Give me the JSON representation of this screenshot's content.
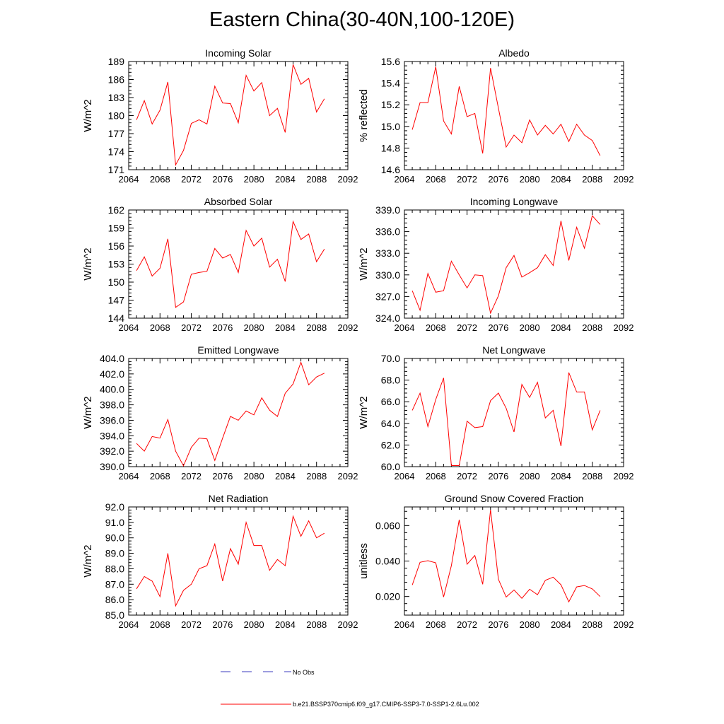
{
  "title": "Eastern China(30-40N,100-120E)",
  "legend": {
    "entries": [
      {
        "label": "No Obs",
        "style": "dashed",
        "color": "#3b3bbf"
      },
      {
        "label": "b.e21.BSSP370cmip6.f09_g17.CMIP6-SSP3-7.0-SSP1-2.6Lu.002",
        "style": "solid",
        "color": "#ff0000"
      }
    ]
  },
  "chart_data": [
    {
      "type": "line",
      "title": "Incoming Solar",
      "ylabel": "W/m^2",
      "xlim": [
        2064,
        2092
      ],
      "ylim": [
        171,
        189
      ],
      "xticks": [
        "2064",
        "2068",
        "2072",
        "2076",
        "2080",
        "2084",
        "2088",
        "2092"
      ],
      "yticks": [
        "171",
        "174",
        "177",
        "180",
        "183",
        "186",
        "189"
      ],
      "color": "#ff0000",
      "x": [
        2065,
        2066,
        2067,
        2068,
        2069,
        2070,
        2071,
        2072,
        2073,
        2074,
        2075,
        2076,
        2077,
        2078,
        2079,
        2080,
        2081,
        2082,
        2083,
        2084,
        2085,
        2086,
        2087,
        2088,
        2089
      ],
      "y": [
        179.3,
        182.5,
        178.6,
        180.9,
        185.6,
        171.8,
        174.2,
        178.7,
        179.3,
        178.6,
        184.9,
        182.1,
        182.0,
        178.8,
        186.7,
        184.1,
        185.5,
        180.0,
        181.2,
        177.2,
        188.5,
        185.2,
        186.2,
        180.6,
        182.8
      ]
    },
    {
      "type": "line",
      "title": "Albedo",
      "ylabel": "% reflected",
      "xlim": [
        2064,
        2092
      ],
      "ylim": [
        14.6,
        15.6
      ],
      "xticks": [
        "2064",
        "2068",
        "2072",
        "2076",
        "2080",
        "2084",
        "2088",
        "2092"
      ],
      "yticks": [
        "14.6",
        "14.8",
        "15.0",
        "15.2",
        "15.4",
        "15.6"
      ],
      "color": "#ff0000",
      "x": [
        2065,
        2066,
        2067,
        2068,
        2069,
        2070,
        2071,
        2072,
        2073,
        2074,
        2075,
        2076,
        2077,
        2078,
        2079,
        2080,
        2081,
        2082,
        2083,
        2084,
        2085,
        2086,
        2087,
        2088,
        2089
      ],
      "y": [
        14.97,
        15.22,
        15.22,
        15.55,
        15.05,
        14.93,
        15.37,
        15.09,
        15.12,
        14.75,
        15.54,
        15.17,
        14.81,
        14.92,
        14.85,
        15.06,
        14.92,
        15.01,
        14.93,
        15.02,
        14.86,
        15.02,
        14.92,
        14.87,
        14.73
      ]
    },
    {
      "type": "line",
      "title": "Absorbed Solar",
      "ylabel": "W/m^2",
      "xlim": [
        2064,
        2092
      ],
      "ylim": [
        144,
        162
      ],
      "xticks": [
        "2064",
        "2068",
        "2072",
        "2076",
        "2080",
        "2084",
        "2088",
        "2092"
      ],
      "yticks": [
        "144",
        "147",
        "150",
        "153",
        "156",
        "159",
        "162"
      ],
      "color": "#ff0000",
      "x": [
        2065,
        2066,
        2067,
        2068,
        2069,
        2070,
        2071,
        2072,
        2073,
        2074,
        2075,
        2076,
        2077,
        2078,
        2079,
        2080,
        2081,
        2082,
        2083,
        2084,
        2085,
        2086,
        2087,
        2088,
        2089
      ],
      "y": [
        151.9,
        154.2,
        151.0,
        152.3,
        157.2,
        145.8,
        146.7,
        151.3,
        151.6,
        151.8,
        155.6,
        154.0,
        154.6,
        151.6,
        158.6,
        156.0,
        157.3,
        152.5,
        153.8,
        150.1,
        160.1,
        157.1,
        158.0,
        153.4,
        155.5
      ]
    },
    {
      "type": "line",
      "title": "Incoming Longwave",
      "ylabel": "W/m^2",
      "xlim": [
        2064,
        2092
      ],
      "ylim": [
        324.0,
        339.0
      ],
      "xticks": [
        "2064",
        "2068",
        "2072",
        "2076",
        "2080",
        "2084",
        "2088",
        "2092"
      ],
      "yticks": [
        "324.0",
        "327.0",
        "330.0",
        "333.0",
        "336.0",
        "339.0"
      ],
      "color": "#ff0000",
      "x": [
        2065,
        2066,
        2067,
        2068,
        2069,
        2070,
        2071,
        2072,
        2073,
        2074,
        2075,
        2076,
        2077,
        2078,
        2079,
        2080,
        2081,
        2082,
        2083,
        2084,
        2085,
        2086,
        2087,
        2088,
        2089
      ],
      "y": [
        327.8,
        325.1,
        330.2,
        327.6,
        327.8,
        331.9,
        330.0,
        328.2,
        330.0,
        329.9,
        324.7,
        327.1,
        331.0,
        332.7,
        329.7,
        330.3,
        331.0,
        332.8,
        331.3,
        337.5,
        332.0,
        336.6,
        333.7,
        338.2,
        337.0
      ]
    },
    {
      "type": "line",
      "title": "Emitted Longwave",
      "ylabel": "W/m^2",
      "xlim": [
        2064,
        2092
      ],
      "ylim": [
        390.0,
        404.0
      ],
      "xticks": [
        "2064",
        "2068",
        "2072",
        "2076",
        "2080",
        "2084",
        "2088",
        "2092"
      ],
      "yticks": [
        "390.0",
        "392.0",
        "394.0",
        "396.0",
        "398.0",
        "400.0",
        "402.0",
        "404.0"
      ],
      "color": "#ff0000",
      "x": [
        2065,
        2066,
        2067,
        2068,
        2069,
        2070,
        2071,
        2072,
        2073,
        2074,
        2075,
        2076,
        2077,
        2078,
        2079,
        2080,
        2081,
        2082,
        2083,
        2084,
        2085,
        2086,
        2087,
        2088,
        2089
      ],
      "y": [
        393.0,
        392.0,
        393.9,
        393.7,
        396.1,
        392.0,
        390.1,
        392.5,
        393.7,
        393.6,
        390.8,
        393.7,
        396.5,
        396.0,
        397.2,
        396.7,
        398.9,
        397.3,
        396.5,
        399.5,
        400.7,
        403.5,
        400.6,
        401.6,
        402.1
      ]
    },
    {
      "type": "line",
      "title": "Net Longwave",
      "ylabel": "W/m^2",
      "xlim": [
        2064,
        2092
      ],
      "ylim": [
        60.0,
        70.0
      ],
      "xticks": [
        "2064",
        "2068",
        "2072",
        "2076",
        "2080",
        "2084",
        "2088",
        "2092"
      ],
      "yticks": [
        "60.0",
        "62.0",
        "64.0",
        "66.0",
        "68.0",
        "70.0"
      ],
      "color": "#ff0000",
      "x": [
        2065,
        2066,
        2067,
        2068,
        2069,
        2070,
        2071,
        2072,
        2073,
        2074,
        2075,
        2076,
        2077,
        2078,
        2079,
        2080,
        2081,
        2082,
        2083,
        2084,
        2085,
        2086,
        2087,
        2088,
        2089
      ],
      "y": [
        65.2,
        66.8,
        63.7,
        66.2,
        68.2,
        60.1,
        60.1,
        64.2,
        63.6,
        63.7,
        66.1,
        66.8,
        65.4,
        63.2,
        67.6,
        66.4,
        67.8,
        64.5,
        65.2,
        61.9,
        68.7,
        66.9,
        66.9,
        63.4,
        65.2
      ]
    },
    {
      "type": "line",
      "title": "Net Radiation",
      "ylabel": "W/m^2",
      "xlim": [
        2064,
        2092
      ],
      "ylim": [
        85.0,
        92.0
      ],
      "xticks": [
        "2064",
        "2068",
        "2072",
        "2076",
        "2080",
        "2084",
        "2088",
        "2092"
      ],
      "yticks": [
        "85.0",
        "86.0",
        "87.0",
        "88.0",
        "89.0",
        "90.0",
        "91.0",
        "92.0"
      ],
      "color": "#ff0000",
      "x": [
        2065,
        2066,
        2067,
        2068,
        2069,
        2070,
        2071,
        2072,
        2073,
        2074,
        2075,
        2076,
        2077,
        2078,
        2079,
        2080,
        2081,
        2082,
        2083,
        2084,
        2085,
        2086,
        2087,
        2088,
        2089
      ],
      "y": [
        86.7,
        87.5,
        87.2,
        86.2,
        89.0,
        85.6,
        86.6,
        87.0,
        88.0,
        88.2,
        89.6,
        87.2,
        89.3,
        88.3,
        91.0,
        89.5,
        89.5,
        87.9,
        88.6,
        88.2,
        91.4,
        90.1,
        91.1,
        90.0,
        90.3
      ]
    },
    {
      "type": "line",
      "title": "Ground Snow Covered Fraction",
      "ylabel": "unitless",
      "xlim": [
        2064,
        2092
      ],
      "ylim": [
        0.0095,
        0.0705
      ],
      "xticks": [
        "2064",
        "2068",
        "2072",
        "2076",
        "2080",
        "2084",
        "2088",
        "2092"
      ],
      "yticks": [
        "0.020",
        "0.040",
        "0.060"
      ],
      "ytickvals": [
        0.02,
        0.04,
        0.06
      ],
      "color": "#ff0000",
      "x": [
        2065,
        2066,
        2067,
        2068,
        2069,
        2070,
        2071,
        2072,
        2073,
        2074,
        2075,
        2076,
        2077,
        2078,
        2079,
        2080,
        2081,
        2082,
        2083,
        2084,
        2085,
        2086,
        2087,
        2088,
        2089
      ],
      "y": [
        0.0265,
        0.0393,
        0.0402,
        0.039,
        0.0197,
        0.0374,
        0.0633,
        0.0382,
        0.0431,
        0.0269,
        0.0689,
        0.0297,
        0.0197,
        0.0237,
        0.019,
        0.0241,
        0.021,
        0.0291,
        0.0309,
        0.0266,
        0.017,
        0.0254,
        0.0262,
        0.0243,
        0.02
      ]
    }
  ]
}
